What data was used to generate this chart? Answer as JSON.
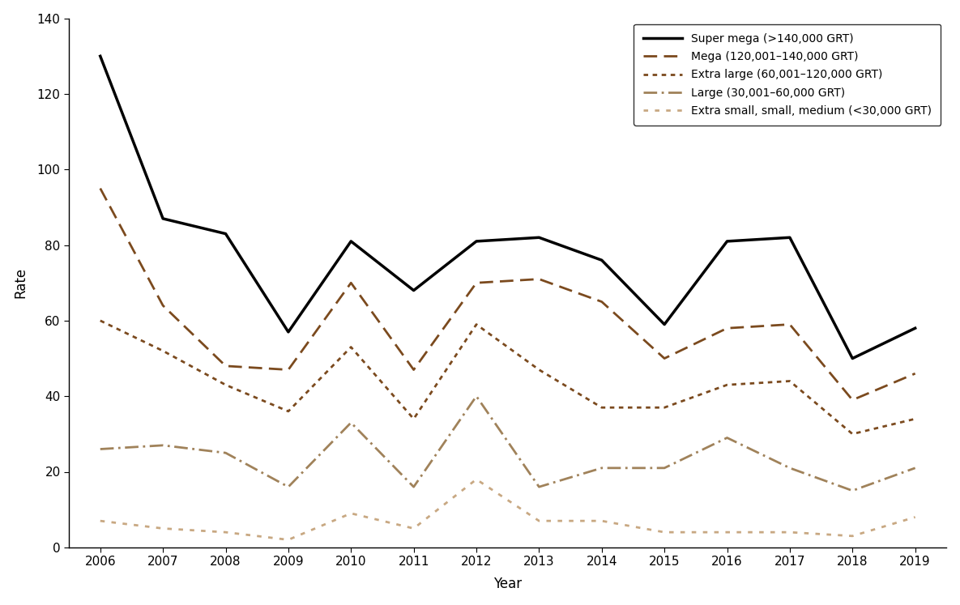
{
  "years": [
    2006,
    2007,
    2008,
    2009,
    2010,
    2011,
    2012,
    2013,
    2014,
    2015,
    2016,
    2017,
    2018,
    2019
  ],
  "super_mega": [
    130,
    87,
    83,
    57,
    81,
    68,
    81,
    82,
    76,
    59,
    81,
    82,
    50,
    58
  ],
  "mega": [
    95,
    64,
    48,
    47,
    70,
    47,
    70,
    71,
    65,
    50,
    58,
    59,
    39,
    46
  ],
  "extra_large": [
    60,
    52,
    43,
    36,
    53,
    34,
    59,
    47,
    37,
    37,
    43,
    44,
    30,
    34
  ],
  "large": [
    26,
    27,
    25,
    16,
    33,
    16,
    40,
    16,
    21,
    21,
    29,
    21,
    15,
    21
  ],
  "extra_small": [
    7,
    5,
    4,
    2,
    9,
    5,
    18,
    7,
    7,
    4,
    4,
    4,
    3,
    8
  ],
  "color_super_mega": "#000000",
  "color_mega": "#7B4A1E",
  "color_extra_large": "#7B4A1E",
  "color_large": "#A0825A",
  "color_extra_small": "#C8A882",
  "xlabel": "Year",
  "ylabel": "Rate",
  "ylim": [
    0,
    140
  ],
  "yticks": [
    0,
    20,
    40,
    60,
    80,
    100,
    120,
    140
  ],
  "legend_labels": [
    "Super mega (>140,000 GRT)",
    "Mega (120,001–140,000 GRT)",
    "Extra large (60,001–120,000 GRT)",
    "Large (30,001–60,000 GRT)",
    "Extra small, small, medium (<30,000 GRT)"
  ],
  "background_color": "#ffffff"
}
